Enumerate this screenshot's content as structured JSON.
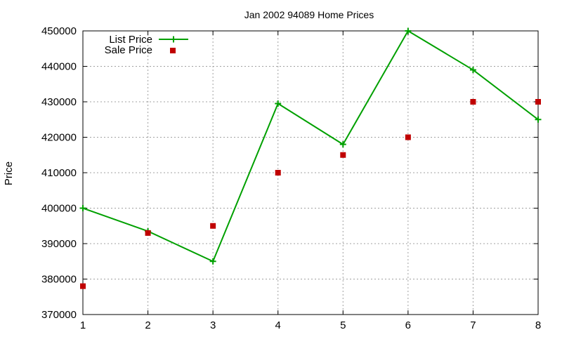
{
  "chart_data": {
    "type": "line",
    "title": "Jan 2002 94089 Home Prices",
    "xlabel": "",
    "ylabel": "Price",
    "x": [
      1,
      2,
      3,
      4,
      5,
      6,
      7,
      8
    ],
    "xlim": [
      1,
      8
    ],
    "ylim": [
      370000,
      450000
    ],
    "x_ticks": [
      1,
      2,
      3,
      4,
      5,
      6,
      7,
      8
    ],
    "y_ticks": [
      370000,
      380000,
      390000,
      400000,
      410000,
      420000,
      430000,
      440000,
      450000
    ],
    "grid": true,
    "legend_position": "top-left",
    "series": [
      {
        "name": "List Price",
        "style": "line-with-plus-markers",
        "color": "#00a000",
        "values": [
          400000,
          393500,
          385000,
          429500,
          418000,
          450000,
          439000,
          425000
        ]
      },
      {
        "name": "Sale Price",
        "style": "square-markers",
        "color": "#c00000",
        "values": [
          378000,
          393000,
          395000,
          410000,
          415000,
          420000,
          430000,
          430000
        ]
      }
    ]
  }
}
